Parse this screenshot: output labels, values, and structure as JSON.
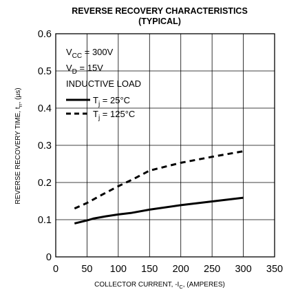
{
  "chart_data": {
    "type": "line",
    "title_line1": "REVERSE RECOVERY CHARACTERISTICS",
    "title_line2": "(TYPICAL)",
    "xlabel": "COLLECTOR CURRENT, -I",
    "xlabel_sub": "C",
    "xlabel_tail": ", (AMPERES)",
    "ylabel": "REVERSE RECOVERY TIME, t",
    "ylabel_sub": "rr",
    "ylabel_tail": ", (µs)",
    "xlim": [
      0,
      350
    ],
    "ylim": [
      0,
      0.6
    ],
    "xticks": [
      0,
      50,
      100,
      150,
      200,
      250,
      300,
      350
    ],
    "xtick_labels": [
      "0",
      "50",
      "100",
      "150",
      "200",
      "250",
      "300",
      "350"
    ],
    "yticks": [
      0,
      0.1,
      0.2,
      0.3,
      0.4,
      0.5,
      0.6
    ],
    "ytick_labels": [
      "0",
      "0.1",
      "0.2",
      "0.3",
      "0.4",
      "0.5",
      "0.6"
    ],
    "grid": true,
    "legend_position": "top-left",
    "conditions": {
      "vcc_main": "V",
      "vcc_sub": "CC",
      "vcc_val": " = 300V",
      "vd_main": "V",
      "vd_sub": "D",
      "vd_val": " = 15V",
      "load": "INDUCTIVE LOAD"
    },
    "series": [
      {
        "name_main": "T",
        "name_sub": "j",
        "name_val": " = 25°C",
        "style": "solid",
        "color": "#000000",
        "x": [
          30,
          50,
          60,
          80,
          100,
          120,
          150,
          200,
          250,
          300
        ],
        "y": [
          0.09,
          0.098,
          0.103,
          0.109,
          0.114,
          0.118,
          0.127,
          0.139,
          0.149,
          0.159
        ]
      },
      {
        "name_main": "T",
        "name_sub": "j",
        "name_val": " = 125°C",
        "style": "dashed",
        "color": "#000000",
        "x": [
          30,
          50,
          75,
          100,
          125,
          150,
          200,
          250,
          300
        ],
        "y": [
          0.13,
          0.145,
          0.168,
          0.19,
          0.21,
          0.232,
          0.253,
          0.269,
          0.284
        ]
      }
    ]
  }
}
